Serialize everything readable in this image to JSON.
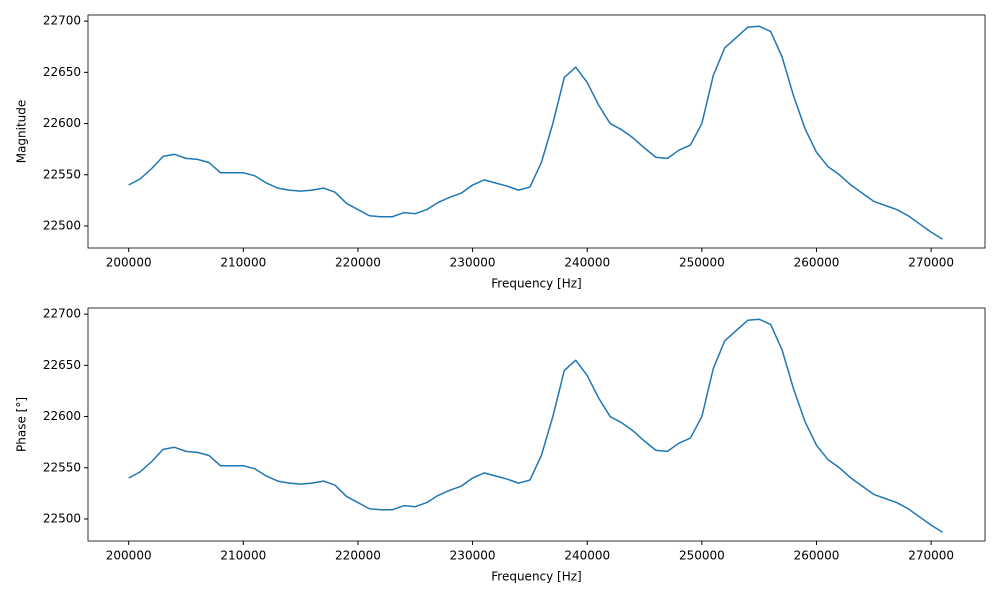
{
  "chart_data": [
    {
      "type": "line",
      "ylabel": "Magnitude",
      "xlabel": "Frequency [Hz]",
      "xlim": [
        196450,
        274700
      ],
      "ylim": [
        22478.5,
        22706
      ],
      "xticks": [
        200000,
        210000,
        220000,
        230000,
        240000,
        250000,
        260000,
        270000
      ],
      "yticks": [
        22500,
        22550,
        22600,
        22650,
        22700
      ],
      "color": "#1f77b4",
      "x": [
        200000,
        201000,
        202000,
        203000,
        204000,
        205000,
        206000,
        207000,
        208000,
        209000,
        210000,
        211000,
        212000,
        213000,
        214000,
        215000,
        216000,
        217000,
        218000,
        219000,
        220000,
        221000,
        222000,
        223000,
        224000,
        225000,
        226000,
        227000,
        228000,
        229000,
        230000,
        231000,
        232000,
        233000,
        234000,
        235000,
        236000,
        237000,
        238000,
        239000,
        240000,
        241000,
        242000,
        243000,
        244000,
        245000,
        246000,
        247000,
        248000,
        249000,
        250000,
        251000,
        252000,
        253000,
        254000,
        255000,
        256000,
        257000,
        258000,
        259000,
        260000,
        261000,
        262000,
        263000,
        264000,
        265000,
        266000,
        267000,
        268000,
        269000,
        270000,
        271000
      ],
      "values": [
        22540,
        22546,
        22556,
        22568,
        22570,
        22566,
        22565,
        22562,
        22552,
        22552,
        22552,
        22549,
        22542,
        22537,
        22535,
        22534,
        22535,
        22537,
        22533,
        22522,
        22516,
        22510,
        22509,
        22509,
        22513,
        22512,
        22516,
        22523,
        22528,
        22532,
        22540,
        22545,
        22542,
        22539,
        22535,
        22538,
        22562,
        22600,
        22645,
        22655,
        22640,
        22618,
        22600,
        22594,
        22586,
        22576,
        22567,
        22566,
        22574,
        22579,
        22600,
        22647,
        22674,
        22684,
        22694,
        22695,
        22690,
        22665,
        22627,
        22595,
        22572,
        22558,
        22550,
        22540,
        22532,
        22524,
        22520,
        22516,
        22510,
        22502,
        22494,
        22487
      ]
    },
    {
      "type": "line",
      "ylabel": "Phase [°]",
      "xlabel": "Frequency [Hz]",
      "xlim": [
        196450,
        274700
      ],
      "ylim": [
        22478.5,
        22706
      ],
      "xticks": [
        200000,
        210000,
        220000,
        230000,
        240000,
        250000,
        260000,
        270000
      ],
      "yticks": [
        22500,
        22550,
        22600,
        22650,
        22700
      ],
      "color": "#1f77b4",
      "x": [
        200000,
        201000,
        202000,
        203000,
        204000,
        205000,
        206000,
        207000,
        208000,
        209000,
        210000,
        211000,
        212000,
        213000,
        214000,
        215000,
        216000,
        217000,
        218000,
        219000,
        220000,
        221000,
        222000,
        223000,
        224000,
        225000,
        226000,
        227000,
        228000,
        229000,
        230000,
        231000,
        232000,
        233000,
        234000,
        235000,
        236000,
        237000,
        238000,
        239000,
        240000,
        241000,
        242000,
        243000,
        244000,
        245000,
        246000,
        247000,
        248000,
        249000,
        250000,
        251000,
        252000,
        253000,
        254000,
        255000,
        256000,
        257000,
        258000,
        259000,
        260000,
        261000,
        262000,
        263000,
        264000,
        265000,
        266000,
        267000,
        268000,
        269000,
        270000,
        271000
      ],
      "values": [
        22540,
        22546,
        22556,
        22568,
        22570,
        22566,
        22565,
        22562,
        22552,
        22552,
        22552,
        22549,
        22542,
        22537,
        22535,
        22534,
        22535,
        22537,
        22533,
        22522,
        22516,
        22510,
        22509,
        22509,
        22513,
        22512,
        22516,
        22523,
        22528,
        22532,
        22540,
        22545,
        22542,
        22539,
        22535,
        22538,
        22562,
        22600,
        22645,
        22655,
        22640,
        22618,
        22600,
        22594,
        22586,
        22576,
        22567,
        22566,
        22574,
        22579,
        22600,
        22647,
        22674,
        22684,
        22694,
        22695,
        22690,
        22665,
        22627,
        22595,
        22572,
        22558,
        22550,
        22540,
        22532,
        22524,
        22520,
        22516,
        22510,
        22502,
        22494,
        22487
      ]
    }
  ]
}
